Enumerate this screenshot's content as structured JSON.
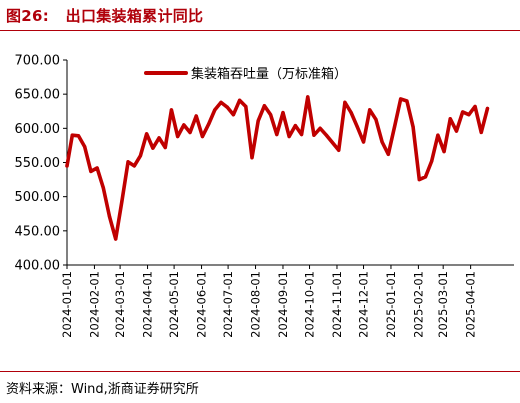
{
  "figure": {
    "title": "图26:   出口集装箱累计同比",
    "source": "资料来源：Wind,浙商证券研究所"
  },
  "colors": {
    "accent": "#b0000a",
    "series": "#c00000",
    "axis": "#000000"
  },
  "chart_data": {
    "type": "line",
    "ylim": [
      400,
      700
    ],
    "yticks": [
      "400.00",
      "450.00",
      "500.00",
      "550.00",
      "600.00",
      "650.00",
      "700.00"
    ],
    "x_range": [
      "2024-01-01",
      "2025-05-20"
    ],
    "xticks": [
      "2024-01-01",
      "2024-02-01",
      "2024-03-01",
      "2024-04-01",
      "2024-05-01",
      "2024-06-01",
      "2024-07-01",
      "2024-08-01",
      "2024-09-01",
      "2024-10-01",
      "2024-11-01",
      "2024-12-01",
      "2025-01-01",
      "2025-02-01",
      "2025-03-01",
      "2025-04-01"
    ],
    "grid": false,
    "legend_position": "top-center",
    "series": [
      {
        "name": "集装箱吞吐量（万标准箱）",
        "points": [
          [
            "2024-01-01",
            545
          ],
          [
            "2024-01-07",
            590
          ],
          [
            "2024-01-14",
            589
          ],
          [
            "2024-01-21",
            573
          ],
          [
            "2024-01-28",
            537
          ],
          [
            "2024-02-04",
            542
          ],
          [
            "2024-02-11",
            513
          ],
          [
            "2024-02-18",
            471
          ],
          [
            "2024-02-25",
            438
          ],
          [
            "2024-03-03",
            493
          ],
          [
            "2024-03-10",
            551
          ],
          [
            "2024-03-17",
            545
          ],
          [
            "2024-03-24",
            560
          ],
          [
            "2024-03-31",
            592
          ],
          [
            "2024-04-07",
            571
          ],
          [
            "2024-04-14",
            586
          ],
          [
            "2024-04-21",
            572
          ],
          [
            "2024-04-28",
            627
          ],
          [
            "2024-05-05",
            588
          ],
          [
            "2024-05-12",
            605
          ],
          [
            "2024-05-19",
            594
          ],
          [
            "2024-05-26",
            618
          ],
          [
            "2024-06-02",
            588
          ],
          [
            "2024-06-09",
            606
          ],
          [
            "2024-06-16",
            627
          ],
          [
            "2024-06-23",
            638
          ],
          [
            "2024-06-30",
            631
          ],
          [
            "2024-07-07",
            620
          ],
          [
            "2024-07-14",
            641
          ],
          [
            "2024-07-21",
            632
          ],
          [
            "2024-07-28",
            557
          ],
          [
            "2024-08-04",
            611
          ],
          [
            "2024-08-11",
            633
          ],
          [
            "2024-08-18",
            620
          ],
          [
            "2024-08-25",
            591
          ],
          [
            "2024-09-01",
            623
          ],
          [
            "2024-09-08",
            588
          ],
          [
            "2024-09-15",
            604
          ],
          [
            "2024-09-22",
            591
          ],
          [
            "2024-09-29",
            646
          ],
          [
            "2024-10-06",
            590
          ],
          [
            "2024-10-13",
            600
          ],
          [
            "2024-10-20",
            590
          ],
          [
            "2024-10-27",
            579
          ],
          [
            "2024-11-03",
            568
          ],
          [
            "2024-11-10",
            638
          ],
          [
            "2024-11-17",
            623
          ],
          [
            "2024-11-24",
            602
          ],
          [
            "2024-12-01",
            580
          ],
          [
            "2024-12-08",
            627
          ],
          [
            "2024-12-15",
            613
          ],
          [
            "2024-12-22",
            580
          ],
          [
            "2024-12-29",
            562
          ],
          [
            "2025-01-05",
            602
          ],
          [
            "2025-01-12",
            643
          ],
          [
            "2025-01-19",
            640
          ],
          [
            "2025-01-26",
            602
          ],
          [
            "2025-02-02",
            525
          ],
          [
            "2025-02-09",
            529
          ],
          [
            "2025-02-16",
            552
          ],
          [
            "2025-02-23",
            590
          ],
          [
            "2025-03-02",
            566
          ],
          [
            "2025-03-09",
            614
          ],
          [
            "2025-03-16",
            596
          ],
          [
            "2025-03-23",
            624
          ],
          [
            "2025-03-30",
            620
          ],
          [
            "2025-04-06",
            632
          ],
          [
            "2025-04-13",
            594
          ],
          [
            "2025-04-20",
            629
          ]
        ]
      }
    ]
  }
}
